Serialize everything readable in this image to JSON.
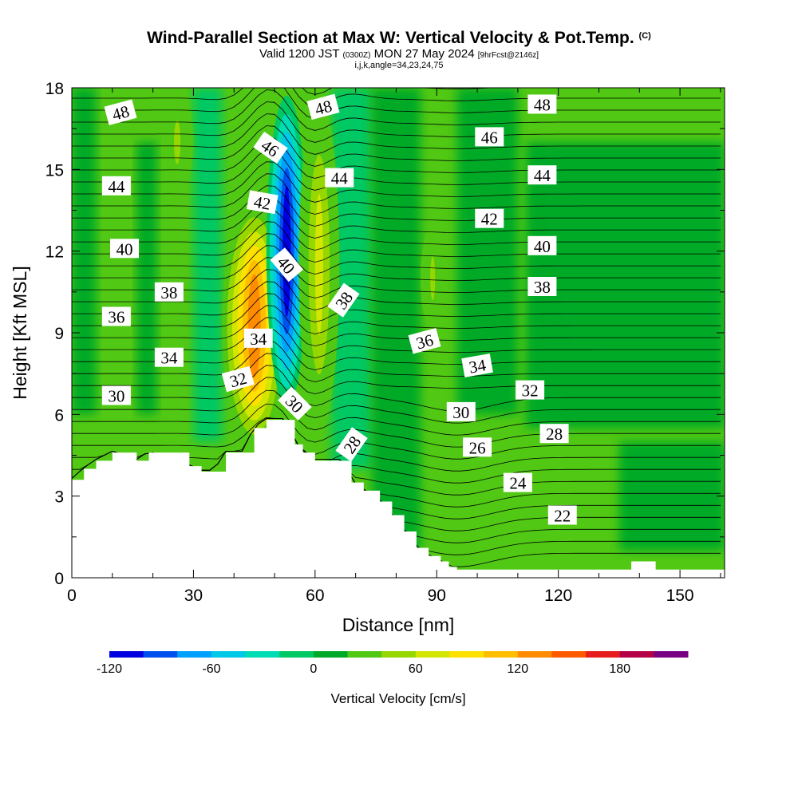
{
  "title": {
    "main": "Wind-Parallel Section at Max W: Vertical Velocity & Pot.Temp.",
    "main_mark": "(C)",
    "valid_prefix": "Valid 1200 JST",
    "valid_z": "(0300Z)",
    "valid_date": "MON 27 May 2024",
    "valid_fcst": "[9hrFcst@2146z]",
    "indices": "i,j,k,angle=34,23,24,75"
  },
  "chart_data": {
    "type": "heatmap",
    "xlabel": "Distance [nm]",
    "ylabel": "Height [Kft MSL]",
    "xlim": [
      0,
      161
    ],
    "ylim": [
      0,
      18
    ],
    "xticks": [
      0,
      30,
      60,
      90,
      120,
      150
    ],
    "yticks": [
      0,
      3,
      6,
      9,
      12,
      15,
      18
    ],
    "colorbar": {
      "label": "Vertical Velocity [cm/s]",
      "ticks": [
        -120,
        -60,
        0,
        60,
        120,
        180
      ],
      "levels": [
        -120,
        -100,
        -80,
        -60,
        -40,
        -20,
        0,
        20,
        40,
        60,
        80,
        100,
        120,
        140,
        160,
        180,
        200
      ],
      "colors": [
        "#0000e0",
        "#0050f0",
        "#00a0ff",
        "#00c8e6",
        "#00dcb4",
        "#00c864",
        "#00aa28",
        "#50c814",
        "#96d700",
        "#d2e600",
        "#ffe100",
        "#ffbe00",
        "#ff8c00",
        "#ff5a00",
        "#e61e1e",
        "#b40046",
        "#780082"
      ]
    },
    "theta_contours": {
      "units": "C",
      "label_values": [
        48,
        46,
        44,
        42,
        40,
        38,
        36,
        34,
        32,
        30,
        28,
        26,
        24,
        22
      ]
    },
    "terrain_height_kft": [
      {
        "x": 0,
        "y": 3.6
      },
      {
        "x": 3,
        "y": 4.0
      },
      {
        "x": 6,
        "y": 4.3
      },
      {
        "x": 10,
        "y": 4.6
      },
      {
        "x": 16,
        "y": 4.3
      },
      {
        "x": 19,
        "y": 4.6
      },
      {
        "x": 29,
        "y": 4.1
      },
      {
        "x": 32,
        "y": 3.9
      },
      {
        "x": 35,
        "y": 3.9
      },
      {
        "x": 38,
        "y": 4.6
      },
      {
        "x": 42,
        "y": 4.6
      },
      {
        "x": 45,
        "y": 5.5
      },
      {
        "x": 48,
        "y": 5.8
      },
      {
        "x": 53,
        "y": 5.8
      },
      {
        "x": 55,
        "y": 4.9
      },
      {
        "x": 57,
        "y": 4.6
      },
      {
        "x": 60,
        "y": 4.3
      },
      {
        "x": 67,
        "y": 4.3
      },
      {
        "x": 69,
        "y": 3.5
      },
      {
        "x": 72,
        "y": 3.2
      },
      {
        "x": 76,
        "y": 2.8
      },
      {
        "x": 79,
        "y": 2.3
      },
      {
        "x": 82,
        "y": 1.7
      },
      {
        "x": 85,
        "y": 1.1
      },
      {
        "x": 88,
        "y": 0.8
      },
      {
        "x": 91,
        "y": 0.6
      },
      {
        "x": 93,
        "y": 0.4
      },
      {
        "x": 95,
        "y": 0.3
      },
      {
        "x": 136,
        "y": 0.3
      },
      {
        "x": 138,
        "y": 0.6
      },
      {
        "x": 141,
        "y": 0.6
      },
      {
        "x": 144,
        "y": 0.3
      },
      {
        "x": 161,
        "y": 0.3
      }
    ],
    "w_field_features": [
      {
        "type": "updraft",
        "x_range": [
          37,
          53
        ],
        "z_range": [
          4.5,
          14
        ],
        "peak_cm_s": 120
      },
      {
        "type": "downdraft",
        "x_range": [
          48,
          58
        ],
        "z_range": [
          6,
          18
        ],
        "peak_cm_s": -120
      },
      {
        "type": "updraft",
        "x_range": [
          56,
          66
        ],
        "z_range": [
          5,
          18
        ],
        "peak_cm_s": 60
      },
      {
        "type": "updraft",
        "x_range": [
          22,
          30
        ],
        "z_range": [
          14,
          18
        ],
        "peak_cm_s": 40
      },
      {
        "type": "updraft",
        "x_range": [
          86,
          92
        ],
        "z_range": [
          9,
          13
        ],
        "peak_cm_s": 40
      }
    ]
  }
}
